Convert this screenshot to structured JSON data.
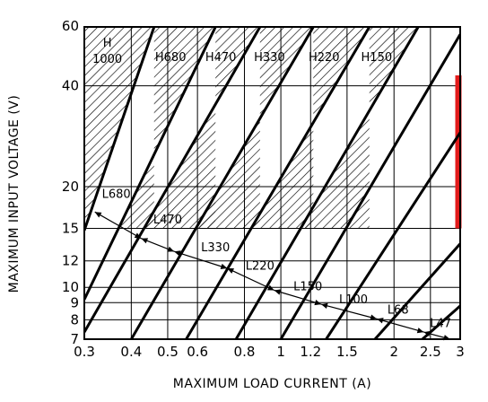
{
  "chart_data": {
    "type": "line",
    "title": "",
    "xlabel": "MAXIMUM LOAD CURRENT (A)",
    "ylabel": "MAXIMUM INPUT VOLTAGE (V)",
    "xscale": "log",
    "yscale": "log",
    "xlim": [
      0.3,
      3
    ],
    "ylim": [
      7,
      60
    ],
    "grid": true,
    "x_ticks": [
      {
        "value": 0.3,
        "label": "0.3"
      },
      {
        "value": 0.4,
        "label": "0.4"
      },
      {
        "value": 0.5,
        "label": "0.5"
      },
      {
        "value": 0.6,
        "label": "0.6"
      },
      {
        "value": 0.8,
        "label": "0.8"
      },
      {
        "value": 1,
        "label": "1"
      },
      {
        "value": 1.2,
        "label": "1.2"
      },
      {
        "value": 1.5,
        "label": "1.5"
      },
      {
        "value": 2,
        "label": "2"
      },
      {
        "value": 2.5,
        "label": "2.5"
      },
      {
        "value": 3,
        "label": "3"
      }
    ],
    "y_ticks": [
      {
        "value": 7,
        "label": "7"
      },
      {
        "value": 8,
        "label": "8"
      },
      {
        "value": 9,
        "label": "9"
      },
      {
        "value": 10,
        "label": "10"
      },
      {
        "value": 12,
        "label": "12"
      },
      {
        "value": 15,
        "label": "15"
      },
      {
        "value": 20,
        "label": "20"
      },
      {
        "value": 40,
        "label": "40"
      },
      {
        "value": 60,
        "label": "60"
      }
    ],
    "boundary_lines": [
      {
        "points": [
          [
            0.3,
            14.8
          ],
          [
            0.46,
            60
          ]
        ]
      },
      {
        "points": [
          [
            0.3,
            9.2
          ],
          [
            0.67,
            60
          ]
        ]
      },
      {
        "points": [
          [
            0.3,
            7.35
          ],
          [
            0.88,
            60
          ]
        ]
      },
      {
        "points": [
          [
            0.4,
            7
          ],
          [
            1.22,
            60
          ]
        ]
      },
      {
        "points": [
          [
            0.56,
            7
          ],
          [
            1.72,
            60
          ]
        ]
      },
      {
        "points": [
          [
            0.76,
            7
          ],
          [
            2.32,
            60
          ]
        ]
      },
      {
        "points": [
          [
            1.0,
            7
          ],
          [
            3.0,
            57
          ]
        ]
      },
      {
        "points": [
          [
            1.32,
            7
          ],
          [
            3.0,
            29.0
          ]
        ]
      },
      {
        "points": [
          [
            1.78,
            7
          ],
          [
            3.0,
            13.5
          ]
        ]
      },
      {
        "points": [
          [
            2.38,
            7
          ],
          [
            3.0,
            8.8
          ]
        ]
      }
    ],
    "hatched_regions": [
      {
        "label_lines": [
          "H",
          "1000"
        ],
        "x_range": [
          0.3,
          0.46
        ]
      },
      {
        "label_lines": [
          "H680"
        ],
        "x_range": [
          0.46,
          0.67
        ]
      },
      {
        "label_lines": [
          "H470"
        ],
        "x_range": [
          0.67,
          0.88
        ]
      },
      {
        "label_lines": [
          "H330"
        ],
        "x_range": [
          0.88,
          1.22
        ]
      },
      {
        "label_lines": [
          "H220"
        ],
        "x_range": [
          1.22,
          1.72
        ]
      },
      {
        "label_lines": [
          "H150"
        ],
        "x_range": [
          1.72,
          2.32
        ]
      }
    ],
    "inductor_labels": [
      {
        "label": "L680",
        "x": 0.365,
        "y": 18.5
      },
      {
        "label": "L470",
        "x": 0.5,
        "y": 15.5
      },
      {
        "label": "L330",
        "x": 0.67,
        "y": 12.8
      },
      {
        "label": "L220",
        "x": 0.88,
        "y": 11.3
      },
      {
        "label": "L150",
        "x": 1.18,
        "y": 9.8
      },
      {
        "label": "L100",
        "x": 1.56,
        "y": 8.95
      },
      {
        "label": "L68",
        "x": 2.05,
        "y": 8.35
      },
      {
        "label": "L47",
        "x": 2.66,
        "y": 7.6
      }
    ],
    "arrow_chain": [
      [
        0.32,
        16.8
      ],
      [
        0.425,
        14.0
      ],
      [
        0.52,
        12.8
      ],
      [
        0.72,
        11.4
      ],
      [
        0.96,
        9.8
      ],
      [
        1.28,
        8.9
      ],
      [
        1.8,
        8.05
      ],
      [
        2.4,
        7.35
      ],
      [
        2.82,
        7.0
      ]
    ],
    "red_bar": {
      "x": 3.0,
      "y_range": [
        15,
        43
      ],
      "color": "#e31b1b"
    }
  }
}
